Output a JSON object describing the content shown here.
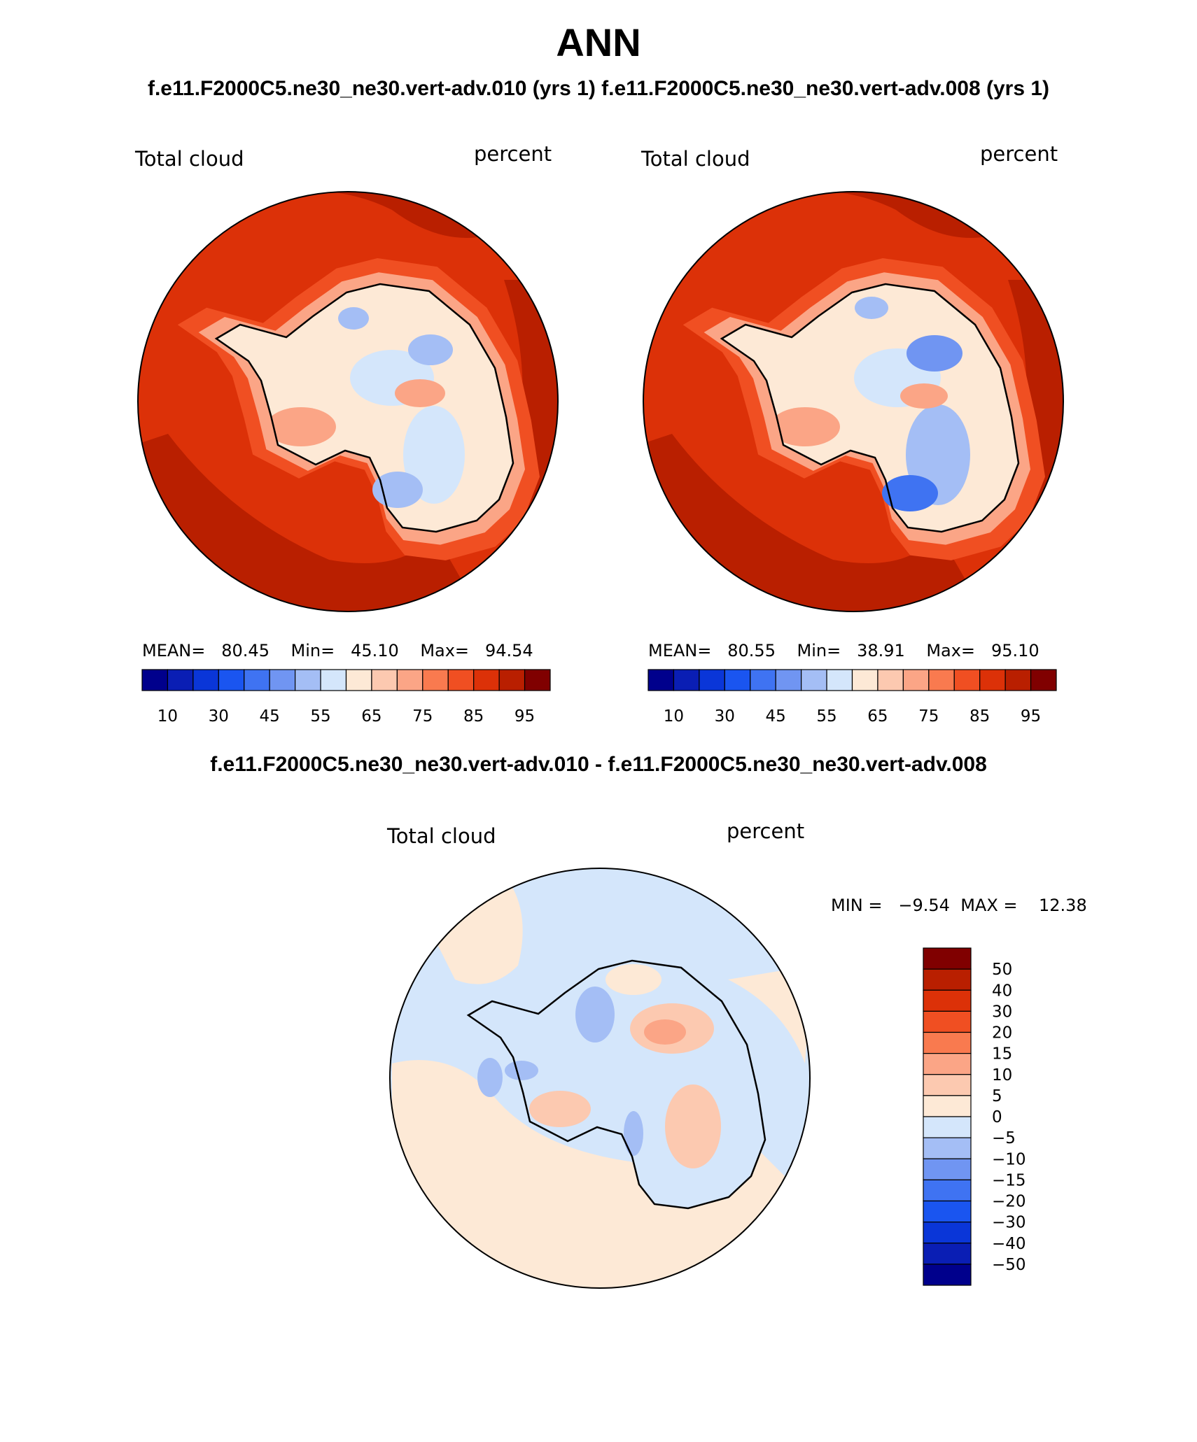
{
  "header": {
    "title": "ANN",
    "subtitle": "f.e11.F2000C5.ne30_ne30.vert-adv.010 (yrs 1) f.e11.F2000C5.ne30_ne30.vert-adv.008 (yrs 1)",
    "diff_title": "f.e11.F2000C5.ne30_ne30.vert-adv.010 - f.e11.F2000C5.ne30_ne30.vert-adv.008"
  },
  "panels": [
    {
      "variable": "Total cloud",
      "units": "percent",
      "stats": {
        "mean_label": "MEAN=",
        "mean": "80.45",
        "min_label": "Min=",
        "min": "45.10",
        "max_label": "Max=",
        "max": "94.54"
      }
    },
    {
      "variable": "Total cloud",
      "units": "percent",
      "stats": {
        "mean_label": "MEAN=",
        "mean": "80.55",
        "min_label": "Min=",
        "min": "38.91",
        "max_label": "Max=",
        "max": "95.10"
      }
    }
  ],
  "diff_panel": {
    "variable": "Total cloud",
    "units": "percent",
    "stats": {
      "min_label": "MIN =",
      "min": "−9.54",
      "max_label": "MAX =",
      "max": "12.38"
    }
  },
  "colorbar_abs": {
    "colors": [
      "#00008c",
      "#0a1eb4",
      "#0a36d8",
      "#1a55f0",
      "#3f73f2",
      "#7095f2",
      "#a4bef5",
      "#d4e6fb",
      "#fde9d6",
      "#fcc9b0",
      "#fba586",
      "#f97a4f",
      "#f04f22",
      "#dc3108",
      "#b91f00",
      "#800000"
    ],
    "tick_labels": [
      "10",
      "30",
      "45",
      "55",
      "65",
      "75",
      "85",
      "95"
    ]
  },
  "colorbar_diff": {
    "colors": [
      "#800000",
      "#b91f00",
      "#dc3108",
      "#f04f22",
      "#f97a4f",
      "#fba586",
      "#fcc9b0",
      "#fde9d6",
      "#d4e6fb",
      "#a4bef5",
      "#7095f2",
      "#3f73f2",
      "#1a55f0",
      "#0a36d8",
      "#0a1eb4",
      "#00008c"
    ],
    "tick_labels": [
      "50",
      "40",
      "30",
      "20",
      "15",
      "10",
      "5",
      "0",
      "−5",
      "−10",
      "−15",
      "−20",
      "−30",
      "−40",
      "−50"
    ]
  },
  "map_colors": {
    "ocean_dark": "#b91f00",
    "ocean": "#dc3108",
    "coast_orange": "#f04f22",
    "coast_light": "#fba586",
    "land_pale": "#fde9d6",
    "land_blue": "#d4e6fb",
    "land_mid": "#a4bef5",
    "land_deep": "#7095f2",
    "land_deeper": "#3f73f2",
    "diff_pos": "#fde9d6",
    "diff_neg": "#d4e6fb",
    "diff_mid_pos": "#fcc9b0",
    "diff_mid_neg": "#a4bef5",
    "diff_strong_pos": "#fba586",
    "diff_strong_neg": "#7095f2"
  }
}
